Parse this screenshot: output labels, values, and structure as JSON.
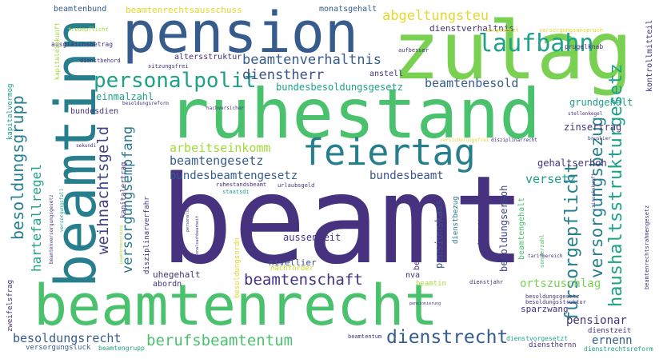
{
  "palette": {
    "dark_purple": "#46327e",
    "blue": "#365c8d",
    "teal": "#277f8e",
    "green_teal": "#1fa187",
    "green": "#4ac16d",
    "light_green": "#a0da39",
    "yellow": "#fde725"
  },
  "words": [
    {
      "id": "beamt",
      "text": "beamt",
      "color": "#46327e"
    },
    {
      "id": "ruhestand",
      "text": "ruhestand",
      "color": "#4ac16d"
    },
    {
      "id": "beamtenrecht",
      "text": "beamtenrecht",
      "color": "#4ac16d"
    },
    {
      "id": "pension",
      "text": "pension",
      "color": "#365c8d"
    },
    {
      "id": "zulag",
      "text": "zulag",
      "color": "#7ad151"
    },
    {
      "id": "beamtinn",
      "text": "beamtinn",
      "color": "#277f8e"
    },
    {
      "id": "feiertag",
      "text": "feiertag",
      "color": "#277f8e"
    },
    {
      "id": "laufbahn",
      "text": "laufbahn",
      "color": "#1fa187"
    },
    {
      "id": "abgeltungsteu",
      "text": "abgeltungsteu",
      "color": "#e5d72b"
    },
    {
      "id": "beamtenverhaltnis",
      "text": "beamtenverhaltnis",
      "color": "#365c8d"
    },
    {
      "id": "personalpolit",
      "text": "personalpolit",
      "color": "#1fa187"
    },
    {
      "id": "dienstherr",
      "text": "dienstherr",
      "color": "#3b528b"
    },
    {
      "id": "bundesbesoldungsgesetz",
      "text": "bundesbesoldungsgesetz",
      "color": "#1fa187"
    },
    {
      "id": "beamtenbesold",
      "text": "beamtenbesold",
      "color": "#365c8d"
    },
    {
      "id": "haushaltsstrukturgesetz",
      "text": "haushaltsstrukturgesetz",
      "color": "#1fa187"
    },
    {
      "id": "versorgungsbezug",
      "text": "versorgungsbezug",
      "color": "#277f8e"
    },
    {
      "id": "besoldungsgrupp",
      "text": "besoldungsgrupp",
      "color": "#277f8e"
    },
    {
      "id": "arbeitseinkomm",
      "text": "arbeitseinkomm",
      "color": "#a0da39"
    },
    {
      "id": "beamtengesetz",
      "text": "beamtengesetz",
      "color": "#365c8d"
    },
    {
      "id": "bundesbeamtengesetz",
      "text": "bundesbeamtengesetz",
      "color": "#365c8d"
    },
    {
      "id": "bundesbeamt",
      "text": "bundesbeamt",
      "color": "#3b528b"
    },
    {
      "id": "versetz",
      "text": "versetz",
      "color": "#1fa187"
    },
    {
      "id": "weihnachtsgeld",
      "text": "weihnachtsgeld",
      "color": "#414487"
    },
    {
      "id": "versorgungsempfang",
      "text": "versorgungsempfang",
      "color": "#2a788e"
    },
    {
      "id": "hartefallregel",
      "text": "hartefallregel",
      "color": "#1fa187"
    },
    {
      "id": "fursorgepflicht",
      "text": "fursorgepflicht",
      "color": "#277f8e"
    },
    {
      "id": "beamtenschaft",
      "text": "beamtenschaft",
      "color": "#46327e"
    },
    {
      "id": "berufsbeamtentum",
      "text": "berufsbeamtentum",
      "color": "#4ac16d"
    },
    {
      "id": "dienstrecht",
      "text": "dienstrecht",
      "color": "#365c8d"
    },
    {
      "id": "besoldungsrecht",
      "text": "besoldungsrecht",
      "color": "#365c8d"
    },
    {
      "id": "ernenn",
      "text": "ernenn",
      "color": "#365c8d"
    },
    {
      "id": "pensionar",
      "text": "pensionar",
      "color": "#46327e"
    },
    {
      "id": "grundgehalt",
      "text": "grundgehalt",
      "color": "#1fa187"
    },
    {
      "id": "zinsertrag",
      "text": "zinsertrag",
      "color": "#46327e"
    },
    {
      "id": "gehaltserhoh",
      "text": "gehaltserhoh",
      "color": "#46327e"
    },
    {
      "id": "aussenseit",
      "text": "aussenseit",
      "color": "#46327e"
    },
    {
      "id": "nivellier",
      "text": "nivellier",
      "color": "#3b528b"
    },
    {
      "id": "nachforder",
      "text": "nachforder",
      "color": "#c8e020"
    },
    {
      "id": "pensionskass",
      "text": "pensionskass",
      "color": "#3b528b"
    },
    {
      "id": "beamtenversorg",
      "text": "beamtenversorg",
      "color": "#46327e"
    },
    {
      "id": "dienstbezug",
      "text": "dienstbezug",
      "color": "#2a788e"
    },
    {
      "id": "besoldungserhoh",
      "text": "besoldungserhoh",
      "color": "#414487"
    },
    {
      "id": "ortszuschlag",
      "text": "ortszuschlag",
      "color": "#7ad151"
    },
    {
      "id": "sparzwang",
      "text": "sparzwang",
      "color": "#46327e"
    },
    {
      "id": "nva",
      "text": "nva",
      "color": "#46327e"
    },
    {
      "id": "beamtin",
      "text": "beamtin",
      "color": "#a0da39"
    },
    {
      "id": "dienstzeit",
      "text": "dienstzeit",
      "color": "#46327e"
    },
    {
      "id": "diensthernn",
      "text": "diensthernn",
      "color": "#46327e"
    },
    {
      "id": "uhegehalt",
      "text": "uhegehalt",
      "color": "#46327e"
    },
    {
      "id": "abordn",
      "text": "abordn",
      "color": "#46327e"
    },
    {
      "id": "einmalzahl",
      "text": "einmalzahl",
      "color": "#1fa187"
    },
    {
      "id": "bundesdien",
      "text": "bundesdien",
      "color": "#46327e"
    },
    {
      "id": "beamtenbund",
      "text": "beamtenbund",
      "color": "#365c8d"
    },
    {
      "id": "beamtenrechtsausschuss",
      "text": "beamtenrechtsausschuss",
      "color": "#e5d72b"
    },
    {
      "id": "monatsgehalt",
      "text": "monatsgehalt",
      "color": "#365c8d"
    },
    {
      "id": "dienstverhaltnis",
      "text": "dienstverhaltnis",
      "color": "#46327e"
    },
    {
      "id": "altersstruktur",
      "text": "altersstruktur",
      "color": "#46327e"
    },
    {
      "id": "anstell",
      "text": "anstell",
      "color": "#46327e"
    },
    {
      "id": "kapitalvermog",
      "text": "kapitalvermog",
      "color": "#1fa187"
    },
    {
      "id": "zweifelsfrag",
      "text": "zweifelsfrag",
      "color": "#46327e"
    },
    {
      "id": "besoldungsordn",
      "text": "besoldungsordn",
      "color": "#e5d72b"
    },
    {
      "id": "disziplinarverfahr",
      "text": "disziplinarverfahr",
      "color": "#46327e"
    },
    {
      "id": "kapitalertrag",
      "text": "kapitalertrag",
      "color": "#46327e"
    },
    {
      "id": "beamtengehalt",
      "text": "beamtengehalt",
      "color": "#4ac16d"
    },
    {
      "id": "versorgungsluck",
      "text": "versorgungsluck",
      "color": "#365c8d"
    },
    {
      "id": "beamtentum",
      "text": "beamtentum",
      "color": "#46327e"
    },
    {
      "id": "beamtengrupp",
      "text": "beamtengrupp",
      "color": "#1fa187"
    },
    {
      "id": "dienstvorgesetzt",
      "text": "dienstvorgesetzt",
      "color": "#1fa187"
    },
    {
      "id": "dienstrechtsreform",
      "text": "dienstrechtsreform",
      "color": "#1fa187"
    },
    {
      "id": "dienstjahr",
      "text": "dienstjahr",
      "color": "#46327e"
    },
    {
      "id": "besoldungsgesetz",
      "text": "besoldungsgesetz",
      "color": "#46327e"
    },
    {
      "id": "besoldungsstruktur",
      "text": "besoldungsstruktur",
      "color": "#46327e"
    },
    {
      "id": "kontrollmitteil",
      "text": "kontrollmitteil",
      "color": "#46327e"
    },
    {
      "id": "beamtenrechtsrahmengesetz",
      "text": "beamtenrechtsrahmengesetz",
      "color": "#46327e"
    },
    {
      "id": "sonderzahl",
      "text": "sonderzahl",
      "color": "#4ac16d"
    },
    {
      "id": "ausgleichsbetrag",
      "text": "ausgleichsbetrag",
      "color": "#46327e"
    },
    {
      "id": "kapitaleinkunft",
      "text": "kapitaleinkunft",
      "color": "#a0da39"
    },
    {
      "id": "treuepflicht",
      "text": "treuepflicht",
      "color": "#a0da39"
    },
    {
      "id": "dienstbehord",
      "text": "dienstbehord",
      "color": "#46327e"
    },
    {
      "id": "sitzungsfrei",
      "text": "sitzungsfrei",
      "color": "#46327e"
    },
    {
      "id": "aufbesser",
      "text": "aufbesser",
      "color": "#46327e"
    },
    {
      "id": "prugelknab",
      "text": "prugelknab",
      "color": "#46327e"
    },
    {
      "id": "vorgesetzt",
      "text": "vorgesetzt",
      "color": "#e5d72b"
    },
    {
      "id": "versorgungsanspruch",
      "text": "versorgungsanspruch",
      "color": "#e5d72b"
    },
    {
      "id": "nachversicher",
      "text": "nachversicher",
      "color": "#46327e"
    },
    {
      "id": "besoldungsreform",
      "text": "besoldungsreform",
      "color": "#46327e"
    },
    {
      "id": "stellenkegel",
      "text": "stellenkegel",
      "color": "#46327e"
    },
    {
      "id": "bruskier",
      "text": "bruskier",
      "color": "#46327e"
    },
    {
      "id": "versicherungsfrei",
      "text": "versicherungsfrei",
      "color": "#e5d72b"
    },
    {
      "id": "disziplinarrecht",
      "text": "disziplinarrecht",
      "color": "#46327e"
    },
    {
      "id": "zinseinkunft",
      "text": "zinseinkunft",
      "color": "#46327e"
    },
    {
      "id": "ruhestandsbeamt",
      "text": "ruhestandsbeamt",
      "color": "#46327e"
    },
    {
      "id": "urlaubsgeld",
      "text": "urlaubsgeld",
      "color": "#46327e"
    },
    {
      "id": "staatsdi",
      "text": "staatsdi",
      "color": "#1fa187"
    },
    {
      "id": "sekundi",
      "text": "sekundi",
      "color": "#46327e"
    },
    {
      "id": "personalsi",
      "text": "personalsi",
      "color": "#46327e"
    },
    {
      "id": "personalsachbearbeit",
      "text": "personalsachbearbeit",
      "color": "#46327e"
    },
    {
      "id": "beamtenversorgungsgesetz",
      "text": "beamtenversorgungsgesetz",
      "color": "#46327e"
    },
    {
      "id": "versorgungsfall",
      "text": "versorgungsfall",
      "color": "#1fa187"
    },
    {
      "id": "alimentationsprinzip",
      "text": "alimentationsprinzip",
      "color": "#46327e"
    },
    {
      "id": "tarifbereich",
      "text": "tarifbereich",
      "color": "#46327e"
    },
    {
      "id": "beamtenbesoldung",
      "text": "beamtenbesoldung",
      "color": "#a0da39"
    },
    {
      "id": "pensionierung",
      "text": "pensionierung",
      "color": "#46327e"
    }
  ]
}
